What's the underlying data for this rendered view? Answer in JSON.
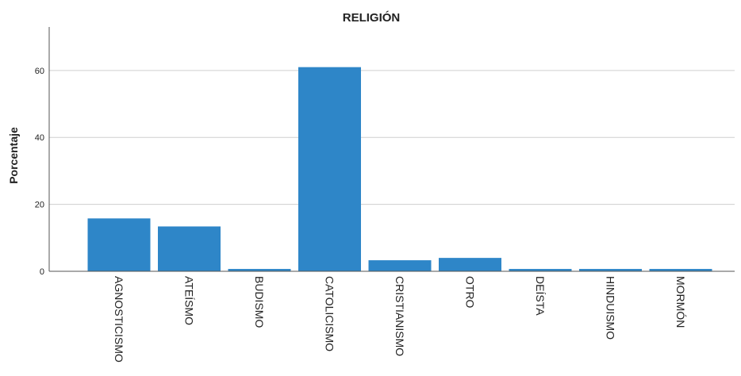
{
  "chart_data": {
    "type": "bar",
    "title": "RELIGIÓN",
    "xlabel": "",
    "ylabel": "Porcentaje",
    "categories": [
      "AGNOSTICISMO",
      "ATEÍSMO",
      "BUDISMO",
      "CATOLICISMO",
      "CRISTIANISMO",
      "OTRO",
      "DEÍSTA",
      "HINDUISMO",
      "MORMÓN"
    ],
    "values": [
      15.8,
      13.4,
      0.7,
      61.0,
      3.3,
      4.0,
      0.7,
      0.7,
      0.7
    ],
    "ylim": [
      0,
      73
    ],
    "yticks": [
      "0",
      "20",
      "40",
      "60"
    ],
    "grid": true,
    "legend": "none",
    "bar_color": "#2e86c8",
    "grid_color": "#cfcfcf",
    "axis_color": "#555555"
  }
}
